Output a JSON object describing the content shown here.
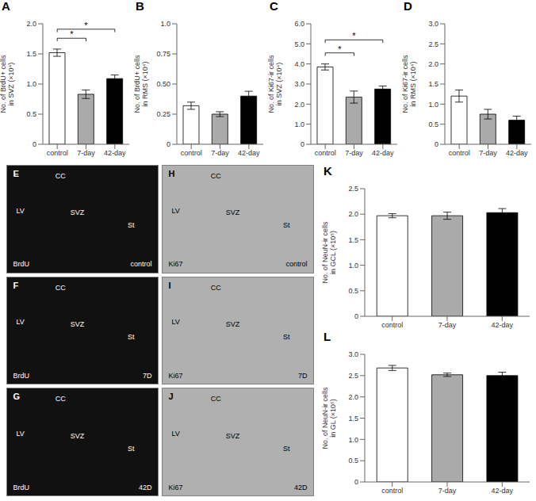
{
  "chart_data": [
    {
      "type": "bar",
      "title": "A",
      "ylabel": "No. of BrdU+ cells\nin SVZ (×10⁴)",
      "categories": [
        "control",
        "7-day",
        "42-day"
      ],
      "values": [
        1.52,
        0.83,
        1.09
      ],
      "errors": [
        0.06,
        0.07,
        0.06
      ],
      "colors": [
        "white",
        "#aaaaaa",
        "black"
      ],
      "ylim": [
        0,
        2.0
      ],
      "yticks": [
        0,
        0.5,
        {
          "value": 1.0,
          "label": "1.0"
        },
        1.5,
        {
          "value": 2.0,
          "label": "2.0"
        }
      ],
      "annotations": [
        {
          "from": "control",
          "to": "7-day",
          "y": 1.76,
          "text": "*"
        },
        {
          "from": "control",
          "to": "42-day",
          "y": 1.91,
          "text": "*"
        }
      ]
    },
    {
      "type": "bar",
      "title": "B",
      "ylabel": "No. of BrdU+ cells\nin RMS (×10⁴)",
      "categories": [
        "control",
        "7-day",
        "42-day"
      ],
      "values": [
        0.32,
        0.25,
        0.4
      ],
      "errors": [
        0.03,
        0.02,
        0.04
      ],
      "colors": [
        "white",
        "#aaaaaa",
        "black"
      ],
      "ylim": [
        0,
        1.0
      ],
      "yticks": [
        0,
        0.25,
        {
          "value": 0.5,
          "label": "0.50"
        },
        0.75,
        {
          "value": 1.0,
          "label": "1.0"
        }
      ]
    },
    {
      "type": "bar",
      "title": "C",
      "ylabel": "No. of Ki67-ir cells\nin SVZ (×10⁴)",
      "categories": [
        "control",
        "7-day",
        "42-day"
      ],
      "values": [
        3.85,
        2.35,
        2.75
      ],
      "errors": [
        0.15,
        0.3,
        0.15
      ],
      "colors": [
        "white",
        "#aaaaaa",
        "black"
      ],
      "ylim": [
        0,
        6.0
      ],
      "yticks": [
        0,
        {
          "value": 1.0,
          "label": "1.0"
        },
        {
          "value": 2.0,
          "label": "2.0"
        },
        {
          "value": 3.0,
          "label": "3.0"
        },
        {
          "value": 4.0,
          "label": "4.0"
        },
        {
          "value": 5.0,
          "label": "5.0"
        },
        {
          "value": 6.0,
          "label": "6.0"
        }
      ],
      "annotations": [
        {
          "from": "control",
          "to": "7-day",
          "y": 4.55,
          "text": "*"
        },
        {
          "from": "control",
          "to": "42-day",
          "y": 5.2,
          "text": "*"
        }
      ]
    },
    {
      "type": "bar",
      "title": "D",
      "ylabel": "No. of Ki67-ir cells\nin RMS (×10⁴)",
      "categories": [
        "control",
        "7-day",
        "42-day"
      ],
      "values": [
        1.2,
        0.75,
        0.6
      ],
      "errors": [
        0.15,
        0.12,
        0.1
      ],
      "colors": [
        "white",
        "#aaaaaa",
        "black"
      ],
      "ylim": [
        0,
        3.0
      ],
      "yticks": [
        0,
        0.5,
        {
          "value": 1.0,
          "label": "1.0"
        },
        1.5,
        {
          "value": 2.0,
          "label": "2.0"
        },
        2.5,
        {
          "value": 3.0,
          "label": "3.0"
        }
      ]
    },
    {
      "type": "image",
      "title": "E",
      "color": "#111111",
      "annotations": [
        "CC",
        "LV",
        "SVZ",
        "St",
        "BrdU",
        "control"
      ]
    },
    {
      "type": "image",
      "title": "F",
      "color": "#111111",
      "annotations": [
        "CC",
        "LV",
        "SVZ",
        "St",
        "BrdU",
        "7D"
      ]
    },
    {
      "type": "image",
      "title": "G",
      "color": "#111111",
      "annotations": [
        "CC",
        "LV",
        "SVZ",
        "St",
        "BrdU",
        "42D"
      ]
    },
    {
      "type": "image",
      "title": "H",
      "color": "#b0b0b0",
      "annotations": [
        "CC",
        "LV",
        "SVZ",
        "St",
        "Ki67",
        "control"
      ]
    },
    {
      "type": "image",
      "title": "I",
      "color": "#b0b0b0",
      "annotations": [
        "CC",
        "LV",
        "SVZ",
        "St",
        "Ki67",
        "7D"
      ]
    },
    {
      "type": "image",
      "title": "J",
      "color": "#b0b0b0",
      "annotations": [
        "CC",
        "LV",
        "SVZ",
        "St",
        "Ki67",
        "42D"
      ]
    },
    {
      "type": "bar",
      "title": "K",
      "ylabel": "No. of NeuN-ir cells\nin GCL (×10⁵)",
      "categories": [
        "control",
        "7-day",
        "42-day"
      ],
      "values": [
        1.97,
        1.97,
        2.03
      ],
      "errors": [
        0.04,
        0.07,
        0.08
      ],
      "colors": [
        "white",
        "#aaaaaa",
        "black"
      ],
      "ylim": [
        0,
        2.5
      ],
      "yticks": [
        0,
        0.5,
        {
          "value": 1.0,
          "label": "1.0"
        },
        1.5,
        {
          "value": 2.0,
          "label": "2.0"
        },
        2.5
      ]
    },
    {
      "type": "bar",
      "title": "L",
      "ylabel": "No. of NeuN-ir cells\nin GL (×10⁵)",
      "categories": [
        "control",
        "7-day",
        "42-day"
      ],
      "values": [
        2.68,
        2.52,
        2.5
      ],
      "errors": [
        0.06,
        0.04,
        0.08
      ],
      "colors": [
        "white",
        "#aaaaaa",
        "black"
      ],
      "ylim": [
        0,
        3.0
      ],
      "yticks": [
        0,
        0.5,
        {
          "value": 1.0,
          "label": "1.0"
        },
        1.5,
        {
          "value": 2.0,
          "label": "2.0"
        },
        2.5,
        {
          "value": 3.0,
          "label": "3.0"
        }
      ]
    }
  ]
}
